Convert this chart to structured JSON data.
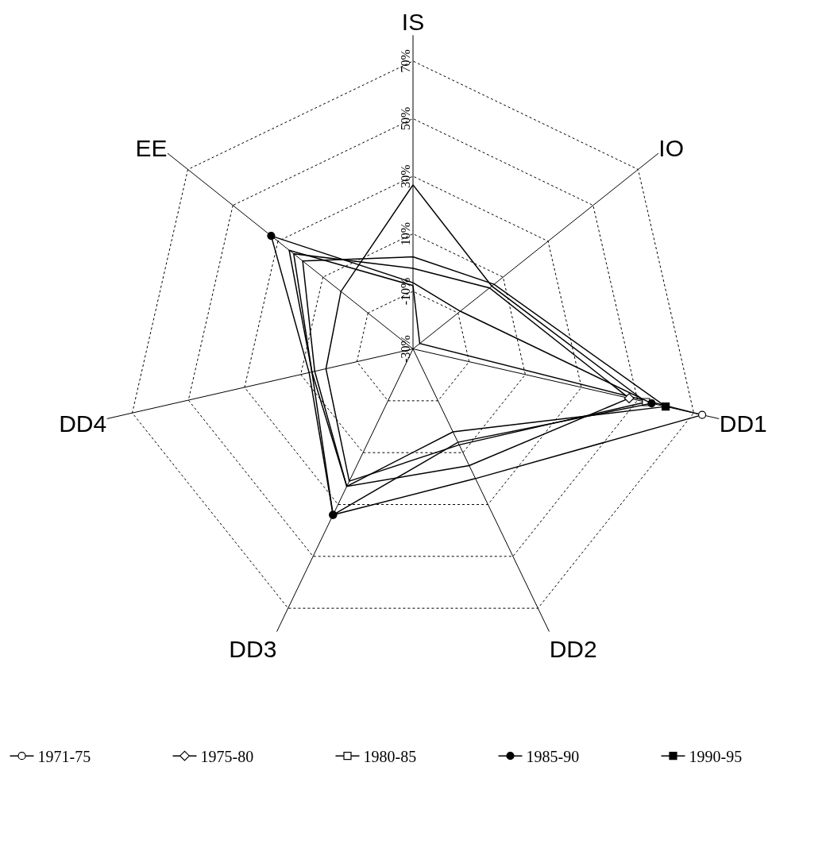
{
  "chart_data": {
    "type": "radar",
    "categories": [
      "IS",
      "IO",
      "DD1",
      "DD2",
      "DD3",
      "DD4",
      "EE"
    ],
    "series": [
      {
        "name": "1971-75",
        "color": "#000000",
        "marker": "circle-open",
        "values": [
          -8,
          -27,
          73,
          20,
          34,
          6,
          25
        ]
      },
      {
        "name": "1975-80",
        "color": "#000000",
        "marker": "diamond-open",
        "values": [
          -2,
          4,
          47,
          15,
          23,
          6,
          23
        ]
      },
      {
        "name": "1980-85",
        "color": "#000000",
        "marker": "square-open",
        "values": [
          27,
          5,
          53,
          7,
          21,
          1,
          2
        ]
      },
      {
        "name": "1985-90",
        "color": "#000000",
        "marker": "circle",
        "values": [
          -7,
          -9,
          55,
          6,
          34,
          7,
          33
        ]
      },
      {
        "name": "1990-95",
        "color": "#000000",
        "marker": "square",
        "values": [
          2,
          6,
          60,
          2,
          23,
          5,
          19
        ]
      }
    ],
    "ylim": [
      -30,
      79
    ],
    "yticks": [
      {
        "value": -30,
        "label": "-30%"
      },
      {
        "value": -10,
        "label": "-10%"
      },
      {
        "value": 10,
        "label": "10%"
      },
      {
        "value": 30,
        "label": "30%"
      },
      {
        "value": 50,
        "label": "50%"
      },
      {
        "value": 70,
        "label": "70%"
      }
    ],
    "grid": true,
    "legend": "bottom",
    "line_style": "solid"
  }
}
